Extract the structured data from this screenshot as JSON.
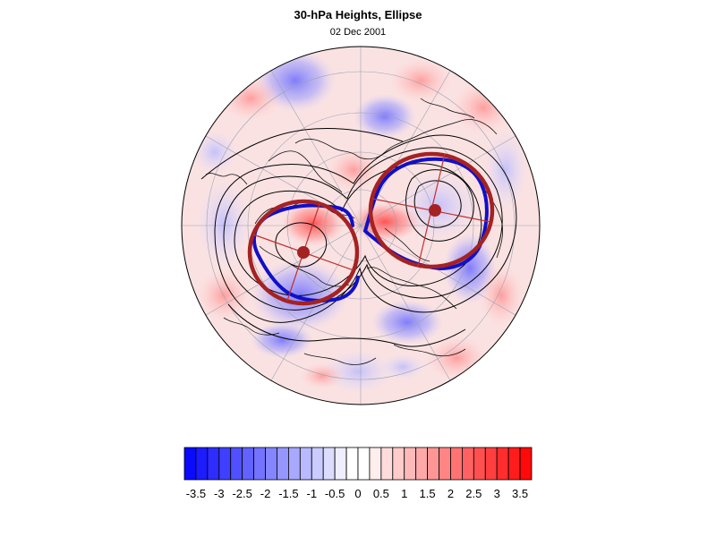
{
  "figure": {
    "title": "30-hPa Heights, Ellipse",
    "subtitle": "02 Dec 2001"
  },
  "colors": {
    "negative_max": "#0a0aff",
    "neutral": "#ffffff",
    "positive_max": "#ff0a0a",
    "ellipse_fit": "#a52222",
    "vortex_edge": "#1010c8",
    "contour": "#000000",
    "coastline": "#000000"
  },
  "map": {
    "projection": "polar-stereographic",
    "hemisphere": "north"
  },
  "colorbar": {
    "min": -3.75,
    "max": 3.75,
    "step": 0.25,
    "labels": [
      "-3.5",
      "-3",
      "-2.5",
      "-2",
      "-1.5",
      "-1",
      "-0.5",
      "0",
      "0.5",
      "1",
      "1.5",
      "2",
      "2.5",
      "3",
      "3.5"
    ]
  }
}
